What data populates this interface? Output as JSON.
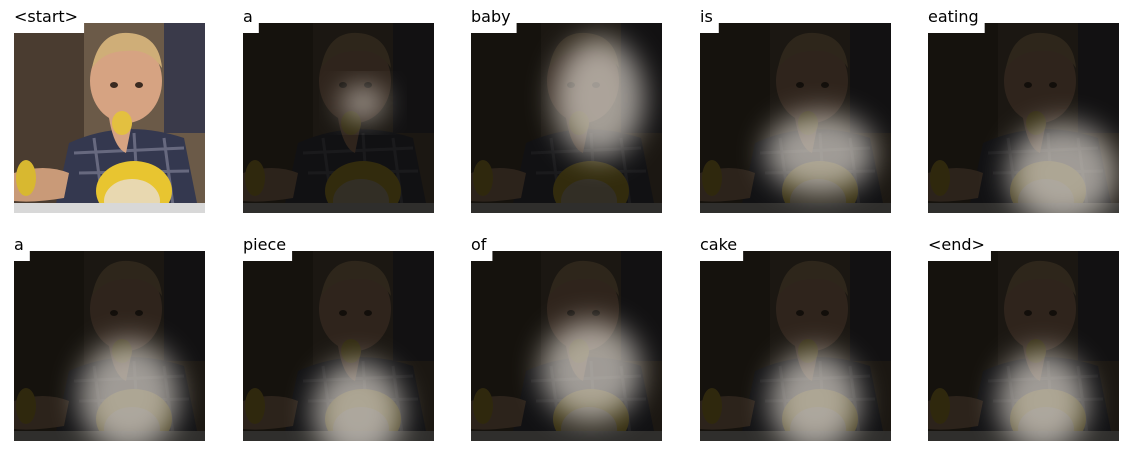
{
  "panels": [
    "<start>",
    "a",
    "baby",
    "is",
    "eating",
    "a",
    "piece",
    "of",
    "cake",
    "<end>"
  ]
}
